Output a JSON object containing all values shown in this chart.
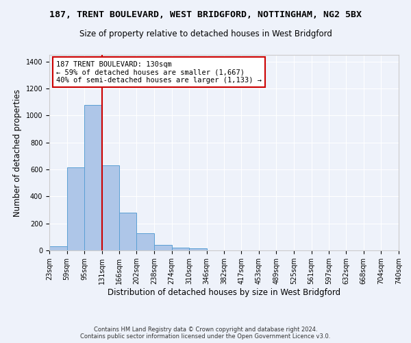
{
  "title": "187, TRENT BOULEVARD, WEST BRIDGFORD, NOTTINGHAM, NG2 5BX",
  "subtitle": "Size of property relative to detached houses in West Bridgford",
  "xlabel": "Distribution of detached houses by size in West Bridgford",
  "ylabel": "Number of detached properties",
  "footer_line1": "Contains HM Land Registry data © Crown copyright and database right 2024.",
  "footer_line2": "Contains public sector information licensed under the Open Government Licence v3.0.",
  "bin_edges": [
    23,
    59,
    95,
    131,
    166,
    202,
    238,
    274,
    310,
    346,
    382,
    417,
    453,
    489,
    525,
    561,
    597,
    632,
    668,
    704,
    740
  ],
  "bar_heights": [
    30,
    615,
    1080,
    630,
    280,
    125,
    42,
    22,
    14,
    0,
    0,
    0,
    0,
    0,
    0,
    0,
    0,
    0,
    0,
    0
  ],
  "bar_color": "#aec6e8",
  "bar_edge_color": "#5a9fd4",
  "vline_x": 131,
  "vline_color": "#cc0000",
  "annotation_text": "187 TRENT BOULEVARD: 130sqm\n← 59% of detached houses are smaller (1,667)\n40% of semi-detached houses are larger (1,133) →",
  "annotation_box_color": "#ffffff",
  "annotation_box_edge_color": "#cc0000",
  "ylim": [
    0,
    1450
  ],
  "yticks": [
    0,
    200,
    400,
    600,
    800,
    1000,
    1200,
    1400
  ],
  "background_color": "#eef2fa",
  "grid_color": "#ffffff",
  "title_fontsize": 9.5,
  "subtitle_fontsize": 8.5,
  "xlabel_fontsize": 8.5,
  "ylabel_fontsize": 8.5,
  "tick_fontsize": 7,
  "annotation_fontsize": 7.5,
  "footer_fontsize": 6
}
